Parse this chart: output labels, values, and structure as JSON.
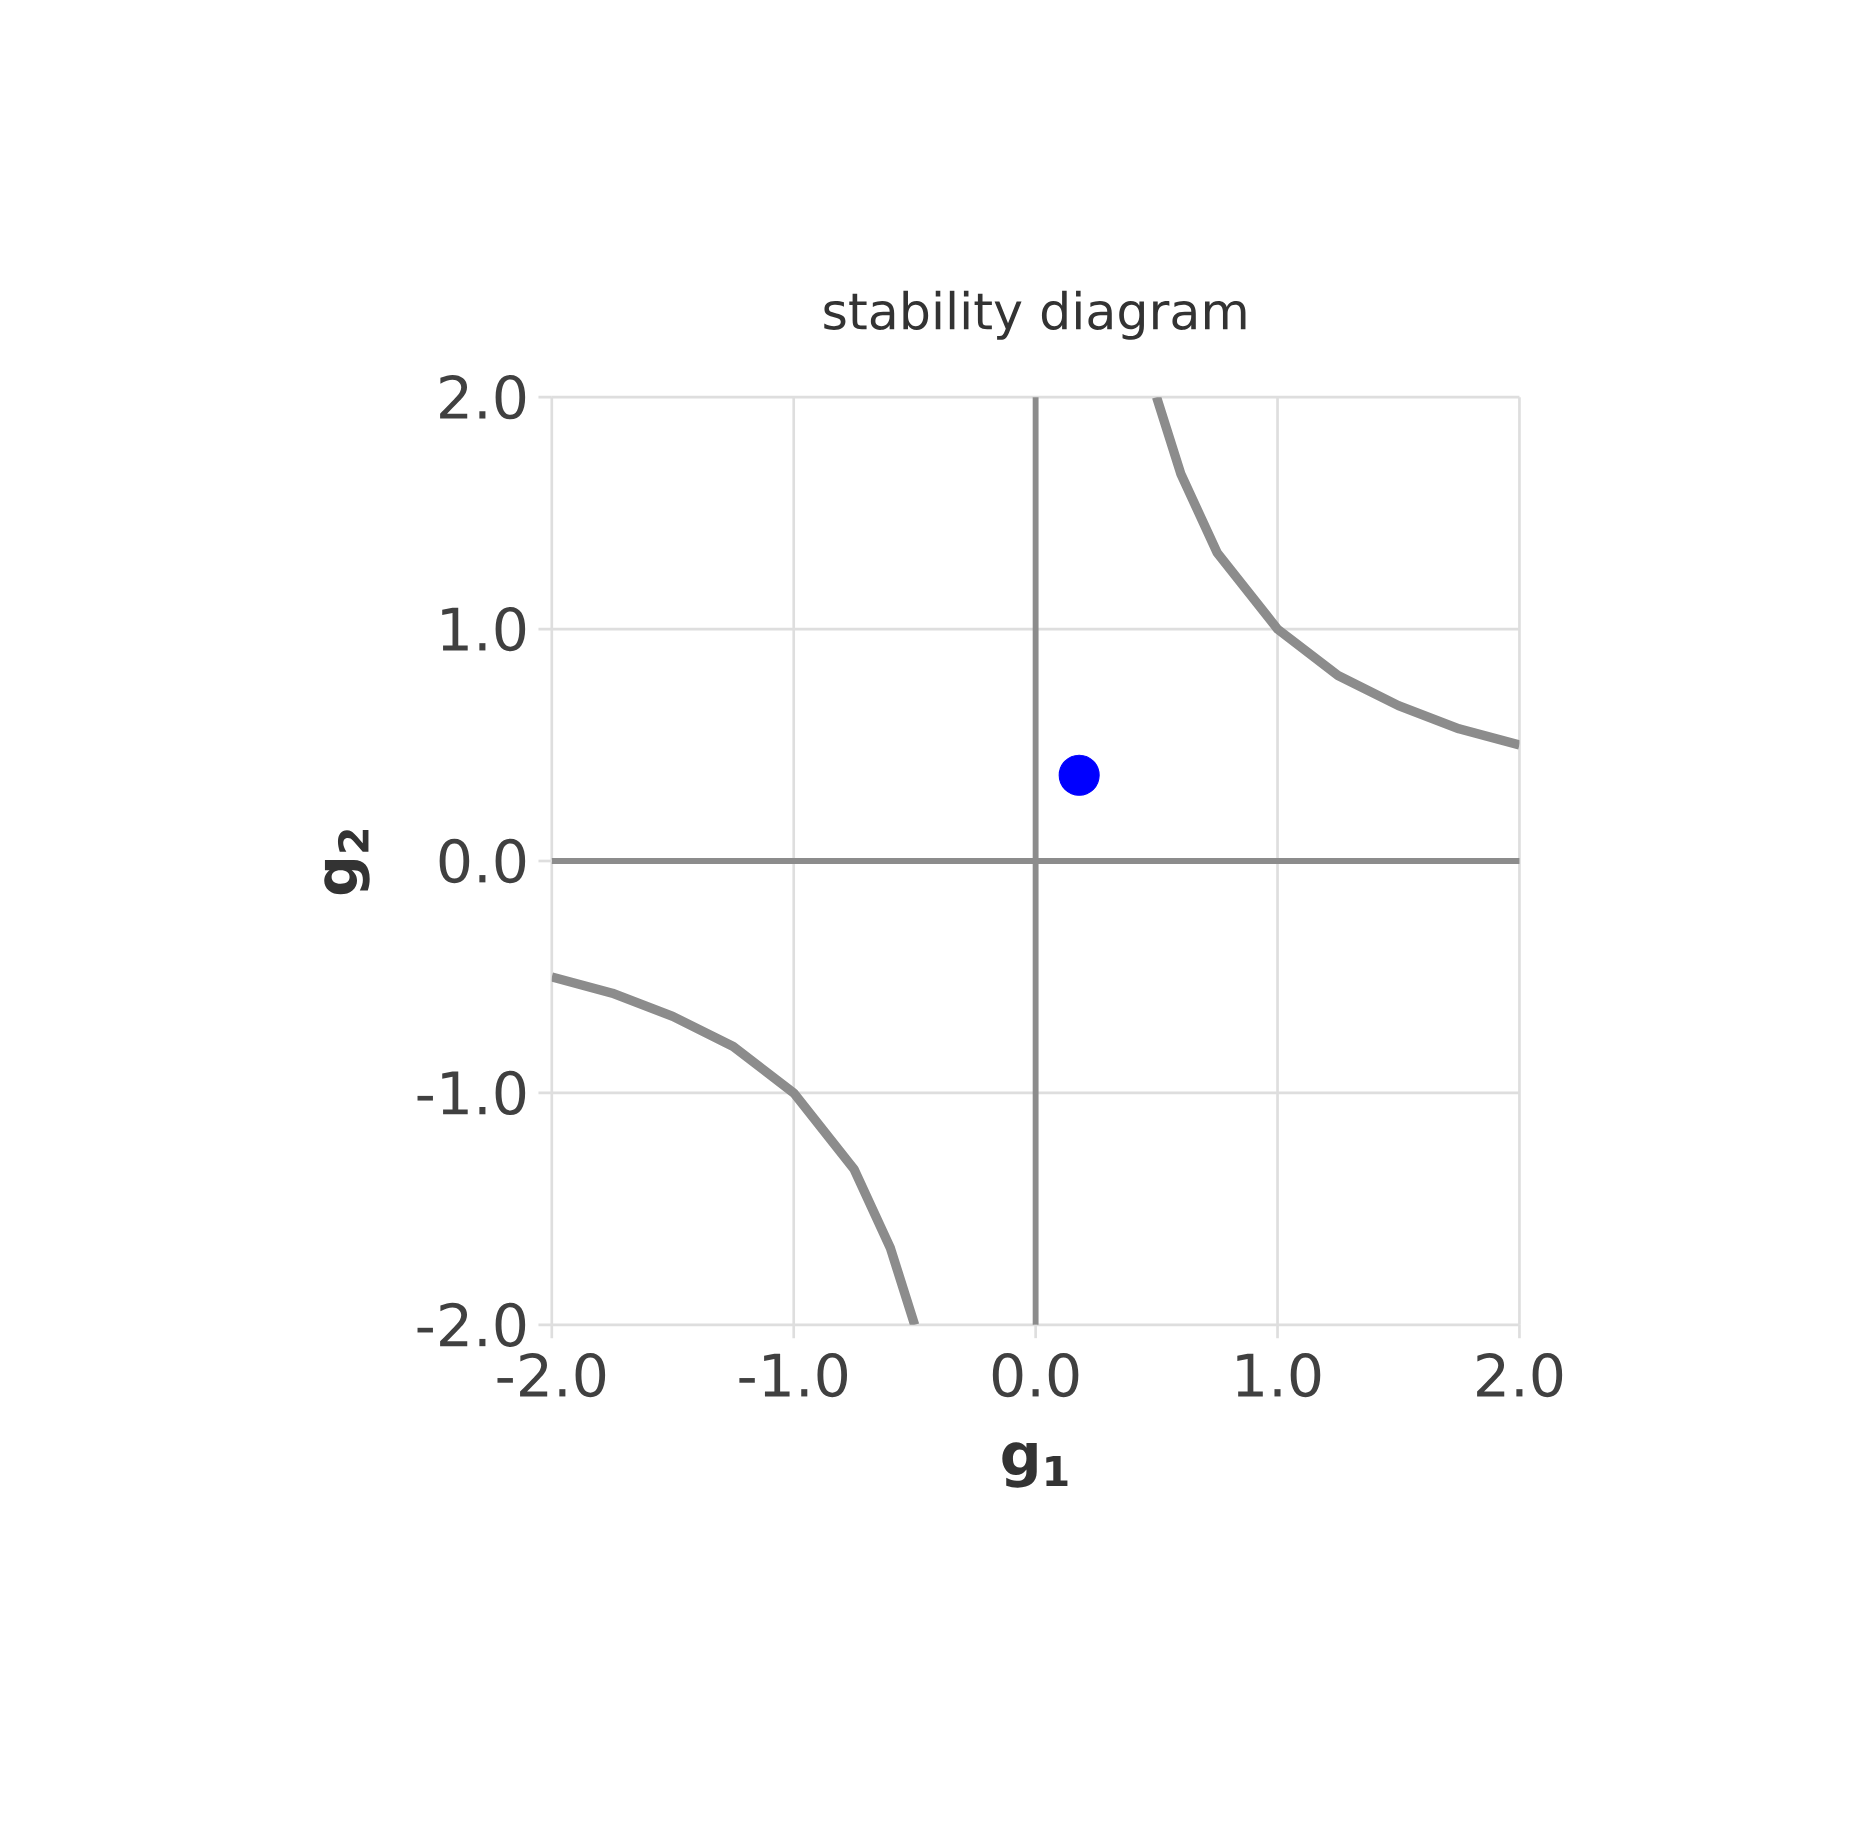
{
  "chart_data": {
    "type": "line",
    "title": "stability diagram",
    "xlabel": "g$_{1}$",
    "ylabel": "g$_{2}$",
    "xlim": [
      -2,
      2
    ],
    "ylim": [
      -2,
      2
    ],
    "xticks": [
      {
        "value": -2,
        "label": "-2.0"
      },
      {
        "value": -1,
        "label": "-1.0"
      },
      {
        "value": 0,
        "label": "0.0"
      },
      {
        "value": 1,
        "label": "1.0"
      },
      {
        "value": 2,
        "label": "2.0"
      }
    ],
    "yticks": [
      {
        "value": -2,
        "label": "-2.0"
      },
      {
        "value": -1,
        "label": "-1.0"
      },
      {
        "value": 0,
        "label": "0.0"
      },
      {
        "value": 1,
        "label": "1.0"
      },
      {
        "value": 2,
        "label": "2.0"
      }
    ],
    "grid": true,
    "line_style": "solid",
    "series": [
      {
        "color": "#8c8c8c",
        "marker": "none",
        "x": [
          0.5,
          0.6,
          0.75,
          1,
          1.25,
          1.5,
          1.75,
          2
        ],
        "values": [
          2,
          1.67,
          1.33,
          1,
          0.8,
          0.67,
          0.57,
          0.5
        ]
      },
      {
        "color": "#8c8c8c",
        "marker": "none",
        "x": [
          -2,
          -1.75,
          -1.5,
          -1.25,
          -1,
          -0.75,
          -0.6,
          -0.5
        ],
        "values": [
          -0.5,
          -0.57,
          -0.67,
          -0.8,
          -1,
          -1.33,
          -1.67,
          -2
        ]
      },
      {
        "type": "scatter",
        "color": "#0000ff",
        "marker": "circle",
        "x": [
          0.18
        ],
        "values": [
          0.37
        ]
      }
    ]
  }
}
